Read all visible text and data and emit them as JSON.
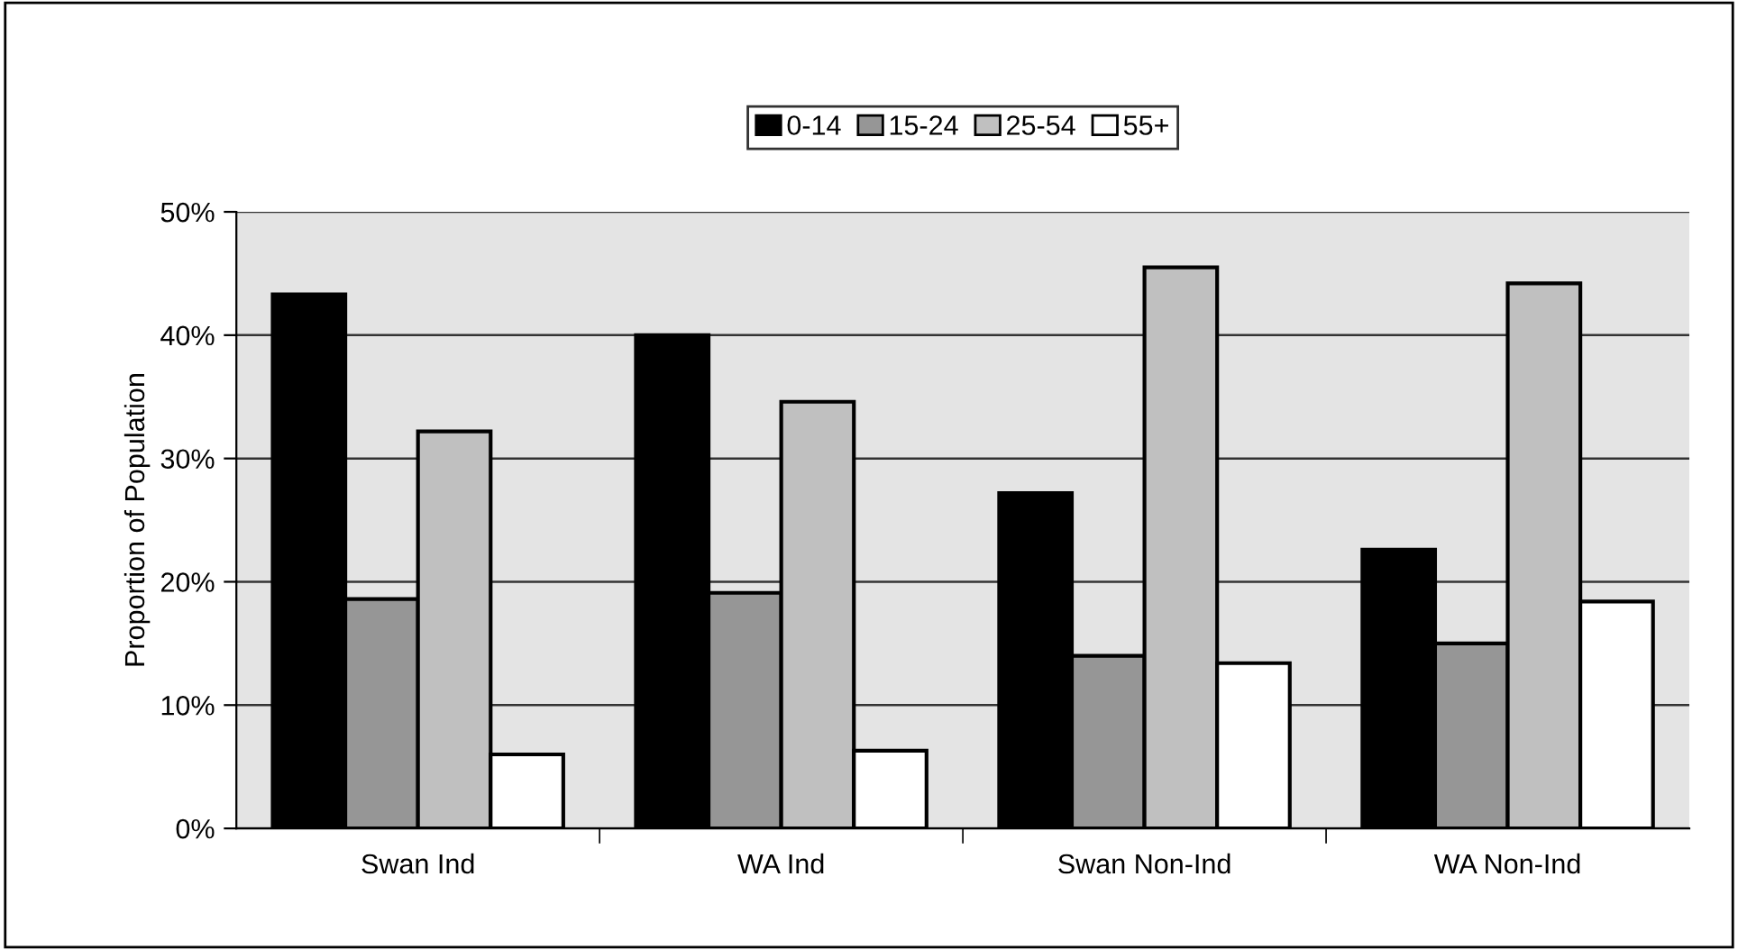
{
  "chart_data": {
    "type": "bar",
    "ylabel": "Proportion of Population",
    "categories": [
      "Swan Ind",
      "WA Ind",
      "Swan Non-Ind",
      "WA Non-Ind"
    ],
    "series": [
      {
        "name": "0-14",
        "color": "#000000",
        "values": [
          43.3,
          40.0,
          27.2,
          22.6
        ]
      },
      {
        "name": "15-24",
        "color": "#969696",
        "values": [
          18.6,
          19.1,
          14.0,
          15.0
        ]
      },
      {
        "name": "25-54",
        "color": "#c0c0c0",
        "values": [
          32.2,
          34.6,
          45.5,
          44.2
        ]
      },
      {
        "name": "55+",
        "color": "#ffffff",
        "values": [
          6.0,
          6.3,
          13.4,
          18.4
        ]
      }
    ],
    "ylim": [
      0,
      50
    ],
    "yticks": [
      {
        "value": 0,
        "label": "0%"
      },
      {
        "value": 10,
        "label": "10%"
      },
      {
        "value": 20,
        "label": "20%"
      },
      {
        "value": 30,
        "label": "30%"
      },
      {
        "value": 40,
        "label": "40%"
      },
      {
        "value": 50,
        "label": "50%"
      }
    ],
    "grid": "y",
    "legend": "top"
  }
}
